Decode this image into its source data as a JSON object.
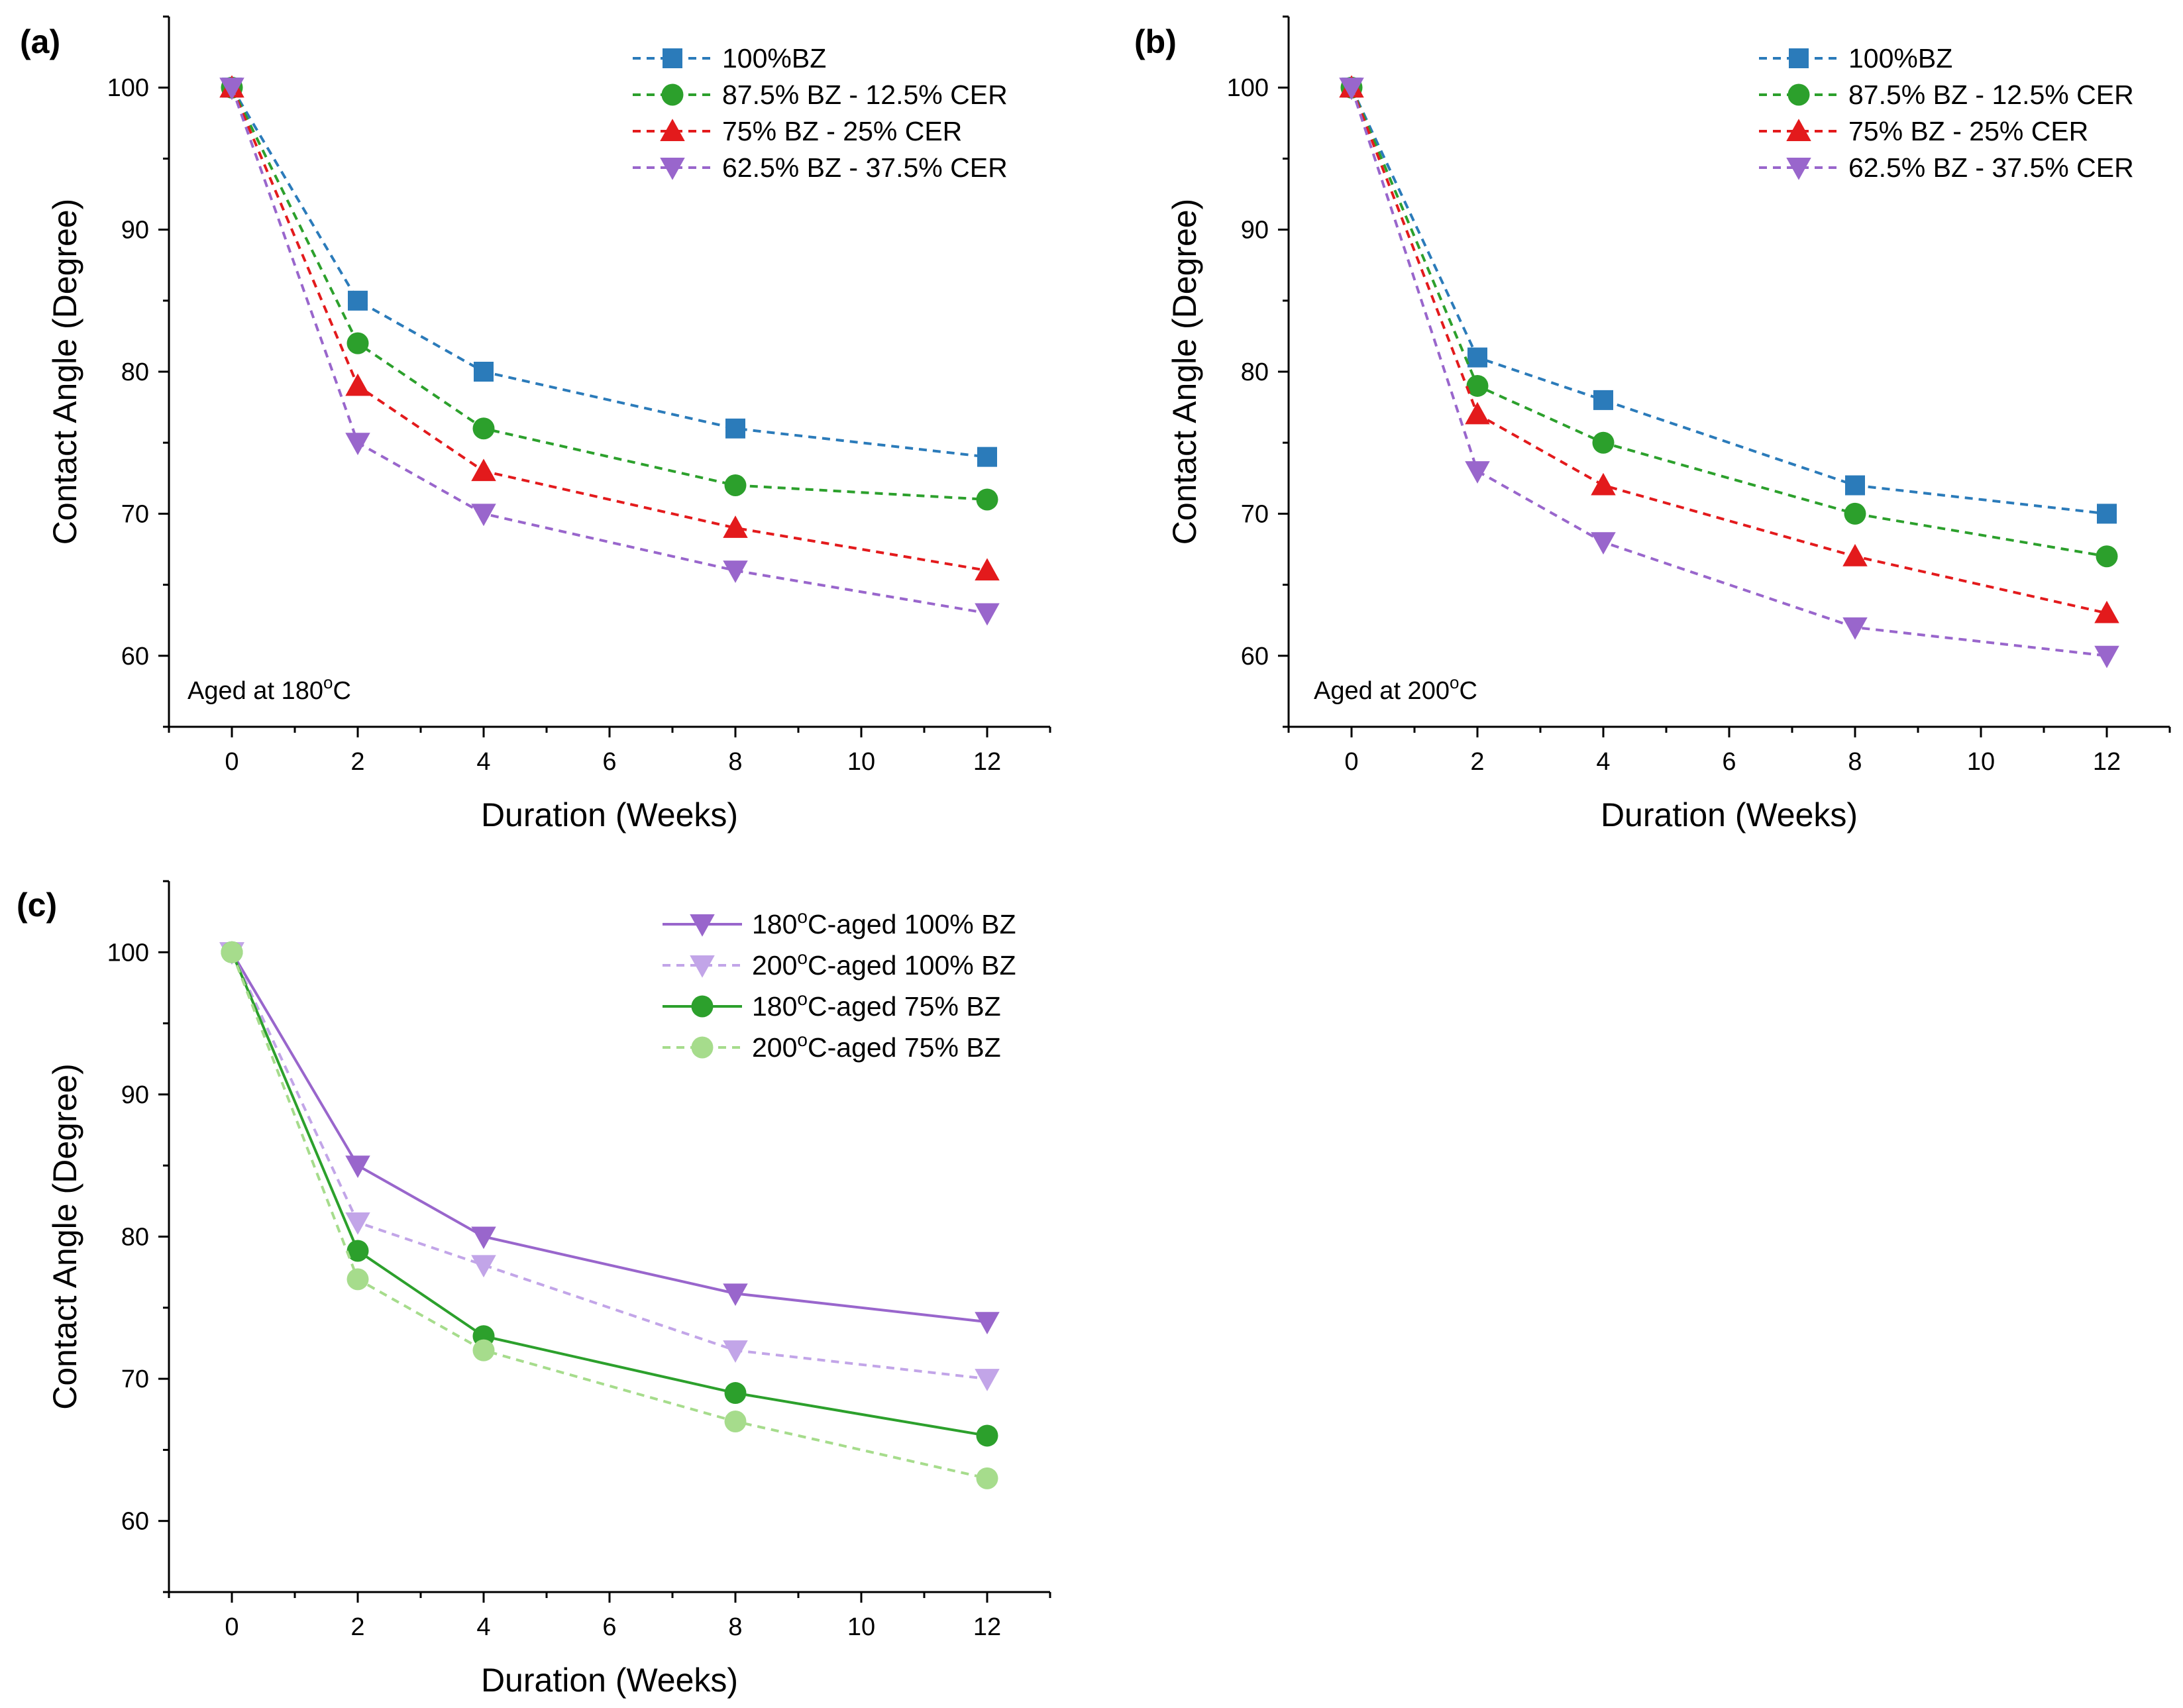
{
  "chart_data": [
    {
      "type": "line",
      "panel": "(a)",
      "annotation_main": "Aged at 180",
      "annotation_sup": "o",
      "annotation_tail": "C",
      "xlabel": "Duration (Weeks)",
      "ylabel": "Contact Angle (Degree)",
      "xlim": [
        -1,
        13
      ],
      "ylim": [
        55,
        105
      ],
      "xticks": [
        0,
        2,
        4,
        6,
        8,
        10,
        12
      ],
      "yticks": [
        60,
        70,
        80,
        90,
        100
      ],
      "x": [
        0,
        2,
        4,
        8,
        12
      ],
      "legend_position": "top-right",
      "series": [
        {
          "name": "100%BZ",
          "label_pre": "100%BZ",
          "label_sup": "",
          "label_post": "",
          "color": "#2b7bba",
          "marker": "square",
          "dash": true,
          "values": [
            100,
            85,
            80,
            76,
            74
          ]
        },
        {
          "name": "87.5% BZ - 12.5% CER",
          "label_pre": "87.5% BZ - 12.5% CER",
          "label_sup": "",
          "label_post": "",
          "color": "#2ca02c",
          "marker": "circle",
          "dash": true,
          "values": [
            100,
            82,
            76,
            72,
            71
          ]
        },
        {
          "name": "75% BZ - 25% CER",
          "label_pre": "75% BZ - 25% CER",
          "label_sup": "",
          "label_post": "",
          "color": "#e31a1c",
          "marker": "triangle-up",
          "dash": true,
          "values": [
            100,
            79,
            73,
            69,
            66
          ]
        },
        {
          "name": "62.5% BZ - 37.5% CER",
          "label_pre": "62.5% BZ - 37.5% CER",
          "label_sup": "",
          "label_post": "",
          "color": "#9966cc",
          "marker": "triangle-down",
          "dash": true,
          "values": [
            100,
            75,
            70,
            66,
            63
          ]
        }
      ]
    },
    {
      "type": "line",
      "panel": "(b)",
      "annotation_main": "Aged at 200",
      "annotation_sup": "o",
      "annotation_tail": "C",
      "xlabel": "Duration (Weeks)",
      "ylabel": "Contact Angle (Degree)",
      "xlim": [
        -1,
        13
      ],
      "ylim": [
        55,
        105
      ],
      "xticks": [
        0,
        2,
        4,
        6,
        8,
        10,
        12
      ],
      "yticks": [
        60,
        70,
        80,
        90,
        100
      ],
      "x": [
        0,
        2,
        4,
        8,
        12
      ],
      "legend_position": "top-right",
      "series": [
        {
          "name": "100%BZ",
          "label_pre": "100%BZ",
          "label_sup": "",
          "label_post": "",
          "color": "#2b7bba",
          "marker": "square",
          "dash": true,
          "values": [
            100,
            81,
            78,
            72,
            70
          ]
        },
        {
          "name": "87.5% BZ - 12.5% CER",
          "label_pre": "87.5% BZ - 12.5% CER",
          "label_sup": "",
          "label_post": "",
          "color": "#2ca02c",
          "marker": "circle",
          "dash": true,
          "values": [
            100,
            79,
            75,
            70,
            67
          ]
        },
        {
          "name": "75% BZ - 25% CER",
          "label_pre": "75% BZ - 25% CER",
          "label_sup": "",
          "label_post": "",
          "color": "#e31a1c",
          "marker": "triangle-up",
          "dash": true,
          "values": [
            100,
            77,
            72,
            67,
            63
          ]
        },
        {
          "name": "62.5% BZ - 37.5% CER",
          "label_pre": "62.5% BZ - 37.5% CER",
          "label_sup": "",
          "label_post": "",
          "color": "#9966cc",
          "marker": "triangle-down",
          "dash": true,
          "values": [
            100,
            73,
            68,
            62,
            60
          ]
        }
      ]
    },
    {
      "type": "line",
      "panel": "(c)",
      "annotation_main": "",
      "annotation_sup": "",
      "annotation_tail": "",
      "xlabel": "Duration (Weeks)",
      "ylabel": "Contact Angle (Degree)",
      "xlim": [
        -1,
        13
      ],
      "ylim": [
        55,
        105
      ],
      "xticks": [
        0,
        2,
        4,
        6,
        8,
        10,
        12
      ],
      "yticks": [
        60,
        70,
        80,
        90,
        100
      ],
      "x": [
        0,
        2,
        4,
        8,
        12
      ],
      "legend_position": "top-right",
      "series": [
        {
          "name": "180oC-aged 100% BZ",
          "label_pre": "180",
          "label_sup": "o",
          "label_post": "C-aged 100% BZ",
          "color": "#9966cc",
          "marker": "triangle-down",
          "dash": false,
          "values": [
            100,
            85,
            80,
            76,
            74
          ]
        },
        {
          "name": "200oC-aged 100% BZ",
          "label_pre": "200",
          "label_sup": "o",
          "label_post": "C-aged 100% BZ",
          "color": "#c2a5e8",
          "marker": "triangle-down",
          "dash": true,
          "values": [
            100,
            81,
            78,
            72,
            70
          ]
        },
        {
          "name": "180oC-aged 75% BZ",
          "label_pre": "180",
          "label_sup": "o",
          "label_post": "C-aged 75% BZ",
          "color": "#2ca02c",
          "marker": "circle",
          "dash": false,
          "values": [
            100,
            79,
            73,
            69,
            66
          ]
        },
        {
          "name": "200oC-aged 75% BZ",
          "label_pre": "200",
          "label_sup": "o",
          "label_post": "C-aged 75% BZ",
          "color": "#a6dc8c",
          "marker": "circle",
          "dash": true,
          "values": [
            100,
            77,
            72,
            67,
            63
          ]
        }
      ]
    }
  ]
}
